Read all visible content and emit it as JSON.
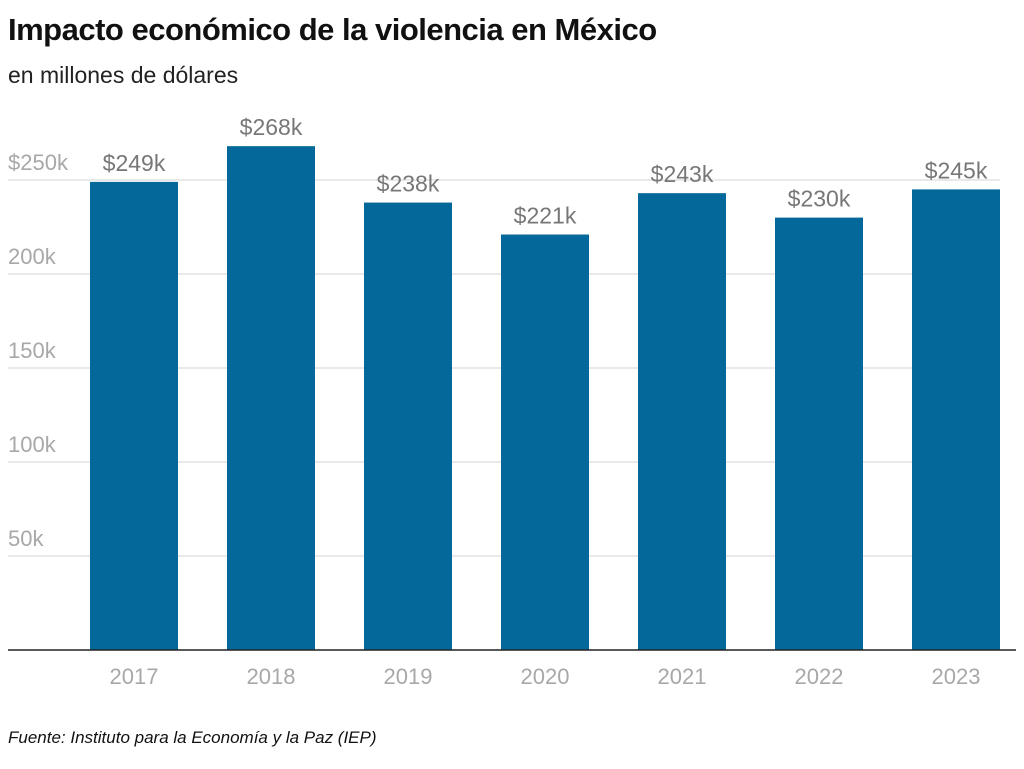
{
  "chart_data": {
    "type": "bar",
    "title": "Impacto económico de la violencia en México",
    "subtitle": "en millones de dólares",
    "source": "Fuente: Instituto para la Economía y la Paz (IEP)",
    "categories": [
      "2017",
      "2018",
      "2019",
      "2020",
      "2021",
      "2022",
      "2023"
    ],
    "values": [
      249,
      268,
      238,
      221,
      243,
      230,
      245
    ],
    "data_labels": [
      "$249k",
      "$268k",
      "$238k",
      "$221k",
      "$243k",
      "$230k",
      "$245k"
    ],
    "ylim": [
      0,
      268
    ],
    "yticks": [
      50,
      100,
      150,
      200,
      250
    ],
    "ytick_labels": [
      "50k",
      "100k",
      "150k",
      "200k",
      "$250k"
    ],
    "grid": true,
    "colors": {
      "bar": "#05689a",
      "grid": "#e2e2e2",
      "tick_text": "#a8a8a8",
      "label_text": "#777777",
      "axis": "#222222"
    }
  }
}
